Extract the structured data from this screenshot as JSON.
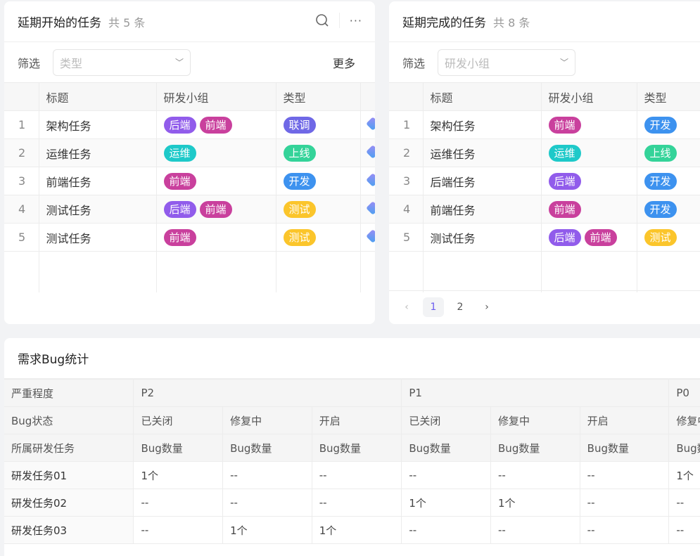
{
  "tag_colors": {
    "后端": "#915ceb",
    "前端": "#c9409d",
    "运维": "#1ec9c9",
    "联调": "#6f68e6",
    "上线": "#34d399",
    "开发": "#3d92ef",
    "测试": "#fbc52b"
  },
  "card1": {
    "title": "延期开始的任务",
    "count": "共 5 条",
    "filter_label": "筛选",
    "filter_placeholder": "类型",
    "more": "更多",
    "columns": [
      "标题",
      "研发小组",
      "类型"
    ],
    "rows": [
      {
        "index": "1",
        "title": "架构任务",
        "groups": [
          "后端",
          "前端"
        ],
        "type": "联调"
      },
      {
        "index": "2",
        "title": "运维任务",
        "groups": [
          "运维"
        ],
        "type": "上线"
      },
      {
        "index": "3",
        "title": "前端任务",
        "groups": [
          "前端"
        ],
        "type": "开发"
      },
      {
        "index": "4",
        "title": "测试任务",
        "groups": [
          "后端",
          "前端"
        ],
        "type": "测试"
      },
      {
        "index": "5",
        "title": "测试任务",
        "groups": [
          "前端"
        ],
        "type": "测试"
      }
    ]
  },
  "card2": {
    "title": "延期完成的任务",
    "count": "共 8 条",
    "filter_label": "筛选",
    "filter_placeholder": "研发小组",
    "columns": [
      "标题",
      "研发小组",
      "类型"
    ],
    "rows": [
      {
        "index": "1",
        "title": "架构任务",
        "groups": [
          "前端"
        ],
        "type": "开发"
      },
      {
        "index": "2",
        "title": "运维任务",
        "groups": [
          "运维"
        ],
        "type": "上线"
      },
      {
        "index": "3",
        "title": "后端任务",
        "groups": [
          "后端"
        ],
        "type": "开发"
      },
      {
        "index": "4",
        "title": "前端任务",
        "groups": [
          "前端"
        ],
        "type": "开发"
      },
      {
        "index": "5",
        "title": "测试任务",
        "groups": [
          "后端",
          "前端"
        ],
        "type": "测试"
      }
    ],
    "pagination": {
      "pages": [
        "1",
        "2"
      ],
      "current": "1"
    }
  },
  "card3": {
    "title": "需求Bug统计",
    "row_labels": [
      "严重程度",
      "Bug状态",
      "所属研发任务"
    ],
    "severity": [
      {
        "label": "P2",
        "span": 3
      },
      {
        "label": "P1",
        "span": 3
      },
      {
        "label": "P0",
        "span": 1
      }
    ],
    "statuses": [
      "已关闭",
      "修复中",
      "开启",
      "已关闭",
      "修复中",
      "开启",
      "修复中"
    ],
    "metric": "Bug数量",
    "rows": [
      {
        "task": "研发任务01",
        "values": [
          "1个",
          "--",
          "--",
          "--",
          "--",
          "--",
          "1个"
        ]
      },
      {
        "task": "研发任务02",
        "values": [
          "--",
          "--",
          "--",
          "1个",
          "1个",
          "--",
          "--"
        ]
      },
      {
        "task": "研发任务03",
        "values": [
          "--",
          "1个",
          "1个",
          "--",
          "--",
          "--",
          "--"
        ]
      }
    ]
  }
}
